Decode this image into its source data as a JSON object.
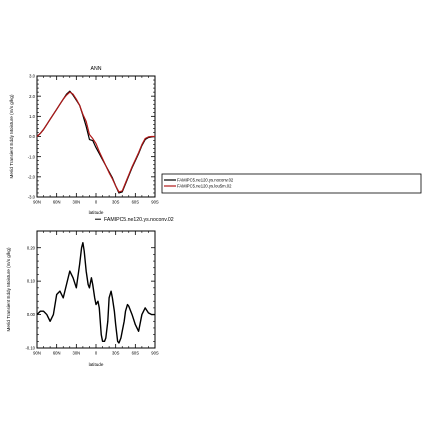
{
  "chart_data": [
    {
      "type": "line",
      "title": "ANN",
      "xlabel": "latitude",
      "ylabel": "Merid Transient Eddy Moisture (m/s g/kg)",
      "xlim": [
        90,
        -90
      ],
      "x_ticks": [
        "90N",
        "60N",
        "30N",
        "0",
        "30S",
        "60S",
        "90S"
      ],
      "ylim": [
        -3.0,
        3.0
      ],
      "y_ticks": [
        "-3.0",
        "-2.0",
        "-1.0",
        "0.0",
        "1.0",
        "2.0",
        "3.0"
      ],
      "grid": false,
      "legend_position": "right",
      "series": [
        {
          "name": "FAMIPC5.ne120.ys.noconv.02",
          "color": "#000000",
          "x": [
            90,
            85,
            80,
            75,
            70,
            65,
            60,
            55,
            50,
            45,
            40,
            35,
            30,
            25,
            20,
            15,
            10,
            5,
            0,
            -5,
            -10,
            -15,
            -20,
            -25,
            -30,
            -35,
            -40,
            -45,
            -50,
            -55,
            -60,
            -65,
            -70,
            -75,
            -80,
            -85,
            -90
          ],
          "y": [
            0.0,
            0.15,
            0.35,
            0.6,
            0.85,
            1.1,
            1.35,
            1.6,
            1.85,
            2.1,
            2.25,
            2.05,
            1.8,
            1.55,
            1.05,
            0.5,
            -0.15,
            -0.2,
            -0.55,
            -0.85,
            -1.15,
            -1.45,
            -1.75,
            -2.05,
            -2.45,
            -2.8,
            -2.75,
            -2.35,
            -1.95,
            -1.55,
            -1.2,
            -0.85,
            -0.45,
            -0.15,
            -0.05,
            -0.02,
            0.0
          ]
        },
        {
          "name": "FAMIPC5.ne120.ys.lou5m.02",
          "color": "#b01818",
          "x": [
            90,
            85,
            80,
            75,
            70,
            65,
            60,
            55,
            50,
            45,
            40,
            35,
            30,
            25,
            20,
            15,
            10,
            5,
            0,
            -5,
            -10,
            -15,
            -20,
            -25,
            -30,
            -35,
            -40,
            -45,
            -50,
            -55,
            -60,
            -65,
            -70,
            -75,
            -80,
            -85,
            -90
          ],
          "y": [
            0.0,
            0.15,
            0.35,
            0.6,
            0.85,
            1.1,
            1.35,
            1.6,
            1.85,
            2.05,
            2.2,
            2.1,
            1.85,
            1.55,
            1.1,
            0.75,
            0.1,
            -0.1,
            -0.35,
            -0.75,
            -1.1,
            -1.45,
            -1.8,
            -2.1,
            -2.45,
            -2.75,
            -2.7,
            -2.3,
            -1.9,
            -1.5,
            -1.15,
            -0.8,
            -0.4,
            -0.1,
            -0.02,
            0.0,
            0.0
          ]
        }
      ]
    },
    {
      "type": "line",
      "title": "FAMIPC5.ne120.ys.noconv.02",
      "xlabel": "latitude",
      "ylabel": "Merid Transient Eddy Moisture (m/s g/kg)",
      "xlim": [
        90,
        -90
      ],
      "x_ticks": [
        "90N",
        "60N",
        "30N",
        "0",
        "30S",
        "60S",
        "90S"
      ],
      "ylim": [
        -0.1,
        0.25
      ],
      "y_ticks": [
        "-0.10",
        "0.00",
        "0.10",
        "0.20"
      ],
      "grid": false,
      "series": [
        {
          "name": "FAMIPC5.ne120.ys.noconv.02",
          "color": "#000000",
          "x": [
            90,
            85,
            80,
            75,
            70,
            65,
            60,
            55,
            50,
            45,
            40,
            35,
            30,
            25,
            22,
            20,
            18,
            15,
            12,
            10,
            7,
            5,
            2,
            0,
            -3,
            -5,
            -8,
            -10,
            -13,
            -15,
            -18,
            -20,
            -23,
            -25,
            -28,
            -30,
            -33,
            -35,
            -38,
            -40,
            -43,
            -45,
            -48,
            -50,
            -55,
            -60,
            -65,
            -70,
            -75,
            -80,
            -85,
            -90
          ],
          "y": [
            0.0,
            0.01,
            0.01,
            0.0,
            -0.02,
            0.0,
            0.06,
            0.07,
            0.05,
            0.09,
            0.13,
            0.11,
            0.08,
            0.15,
            0.2,
            0.215,
            0.19,
            0.13,
            0.09,
            0.08,
            0.11,
            0.09,
            0.05,
            0.03,
            0.04,
            0.02,
            -0.06,
            -0.08,
            -0.08,
            -0.07,
            -0.02,
            0.05,
            0.07,
            0.05,
            0.01,
            -0.03,
            -0.08,
            -0.085,
            -0.07,
            -0.05,
            -0.02,
            0.01,
            0.03,
            0.025,
            0.0,
            -0.03,
            -0.05,
            0.0,
            0.02,
            0.005,
            0.0,
            0.0
          ]
        }
      ]
    }
  ]
}
